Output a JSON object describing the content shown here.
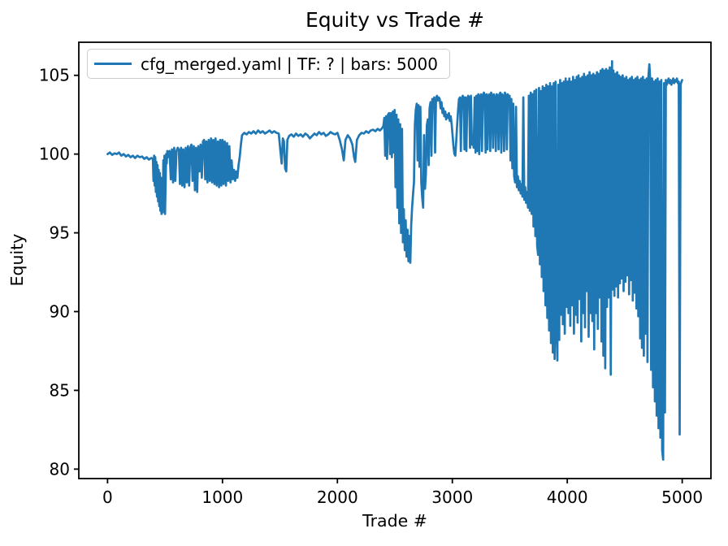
{
  "figure": {
    "title": "Equity vs Trade #",
    "xlabel": "Trade #",
    "ylabel": "Equity",
    "legend": {
      "label": "cfg_merged.yaml | TF: ? | bars: 5000",
      "line_color": "#1f77b4"
    }
  },
  "chart_data": {
    "type": "line",
    "title": "Equity vs Trade #",
    "xlabel": "Trade #",
    "ylabel": "Equity",
    "legend_entries": [
      "cfg_merged.yaml | TF: ? | bars: 5000"
    ],
    "legend_position": "upper left",
    "grid": false,
    "line_color": "#1f77b4",
    "background": "#ffffff",
    "xlim": [
      -250,
      5250
    ],
    "ylim": [
      79.4,
      107.1
    ],
    "xticks": [
      0,
      1000,
      2000,
      3000,
      4000,
      5000
    ],
    "yticks": [
      80,
      85,
      90,
      95,
      100,
      105
    ],
    "x": [
      0,
      20,
      40,
      60,
      80,
      100,
      120,
      140,
      160,
      180,
      200,
      220,
      240,
      260,
      280,
      300,
      320,
      340,
      360,
      380,
      395,
      400,
      405,
      410,
      415,
      420,
      425,
      430,
      435,
      440,
      445,
      450,
      455,
      460,
      465,
      470,
      475,
      480,
      485,
      490,
      495,
      500,
      505,
      510,
      515,
      520,
      525,
      530,
      540,
      550,
      560,
      570,
      580,
      590,
      600,
      610,
      620,
      630,
      640,
      650,
      660,
      670,
      680,
      690,
      700,
      710,
      720,
      730,
      740,
      750,
      760,
      770,
      780,
      790,
      800,
      810,
      820,
      830,
      840,
      850,
      860,
      870,
      880,
      890,
      900,
      910,
      920,
      930,
      940,
      950,
      960,
      970,
      980,
      990,
      1000,
      1010,
      1020,
      1030,
      1040,
      1050,
      1060,
      1070,
      1080,
      1090,
      1100,
      1110,
      1120,
      1130,
      1140,
      1150,
      1160,
      1170,
      1190,
      1210,
      1230,
      1250,
      1270,
      1290,
      1310,
      1330,
      1350,
      1370,
      1390,
      1410,
      1430,
      1450,
      1470,
      1490,
      1505,
      1515,
      1525,
      1535,
      1545,
      1555,
      1565,
      1580,
      1600,
      1620,
      1640,
      1660,
      1680,
      1700,
      1720,
      1740,
      1760,
      1780,
      1800,
      1820,
      1840,
      1860,
      1880,
      1900,
      1920,
      1940,
      1960,
      1980,
      2000,
      2020,
      2040,
      2055,
      2070,
      2090,
      2110,
      2130,
      2145,
      2155,
      2170,
      2190,
      2210,
      2230,
      2250,
      2270,
      2290,
      2310,
      2330,
      2350,
      2370,
      2390,
      2400,
      2408,
      2416,
      2424,
      2432,
      2440,
      2450,
      2458,
      2466,
      2474,
      2482,
      2490,
      2498,
      2506,
      2514,
      2522,
      2530,
      2538,
      2546,
      2554,
      2562,
      2570,
      2578,
      2586,
      2594,
      2602,
      2610,
      2618,
      2626,
      2634,
      2642,
      2650,
      2658,
      2666,
      2674,
      2682,
      2690,
      2698,
      2706,
      2714,
      2722,
      2730,
      2738,
      2746,
      2754,
      2762,
      2770,
      2778,
      2786,
      2794,
      2802,
      2810,
      2818,
      2826,
      2834,
      2842,
      2850,
      2858,
      2866,
      2874,
      2882,
      2890,
      2898,
      2906,
      2914,
      2922,
      2930,
      2938,
      2946,
      2954,
      2962,
      2970,
      2978,
      2986,
      2994,
      3002,
      3010,
      3018,
      3026,
      3034,
      3042,
      3050,
      3058,
      3066,
      3074,
      3082,
      3090,
      3098,
      3106,
      3114,
      3122,
      3130,
      3138,
      3146,
      3154,
      3162,
      3170,
      3178,
      3186,
      3194,
      3202,
      3210,
      3218,
      3226,
      3234,
      3242,
      3250,
      3258,
      3266,
      3274,
      3282,
      3290,
      3298,
      3306,
      3314,
      3322,
      3330,
      3338,
      3346,
      3354,
      3362,
      3370,
      3378,
      3386,
      3394,
      3402,
      3410,
      3418,
      3426,
      3434,
      3442,
      3450,
      3458,
      3466,
      3474,
      3482,
      3490,
      3498,
      3506,
      3514,
      3522,
      3530,
      3538,
      3546,
      3554,
      3562,
      3570,
      3578,
      3586,
      3594,
      3602,
      3610,
      3618,
      3626,
      3634,
      3642,
      3650,
      3658,
      3666,
      3674,
      3682,
      3690,
      3698,
      3706,
      3714,
      3722,
      3730,
      3738,
      3746,
      3754,
      3762,
      3770,
      3778,
      3786,
      3794,
      3802,
      3810,
      3818,
      3826,
      3834,
      3842,
      3850,
      3858,
      3866,
      3874,
      3882,
      3890,
      3898,
      3906,
      3914,
      3922,
      3930,
      3938,
      3946,
      3954,
      3962,
      3970,
      3978,
      3986,
      3994,
      4002,
      4010,
      4018,
      4026,
      4034,
      4042,
      4050,
      4058,
      4066,
      4074,
      4082,
      4090,
      4098,
      4106,
      4114,
      4122,
      4130,
      4138,
      4146,
      4154,
      4162,
      4170,
      4178,
      4186,
      4194,
      4202,
      4210,
      4218,
      4226,
      4234,
      4242,
      4250,
      4258,
      4266,
      4274,
      4282,
      4290,
      4298,
      4306,
      4314,
      4322,
      4330,
      4338,
      4346,
      4354,
      4362,
      4370,
      4378,
      4390,
      4394,
      4402,
      4410,
      4418,
      4426,
      4434,
      4442,
      4450,
      4458,
      4466,
      4474,
      4482,
      4490,
      4498,
      4506,
      4514,
      4522,
      4530,
      4538,
      4546,
      4554,
      4562,
      4570,
      4578,
      4586,
      4594,
      4602,
      4610,
      4618,
      4626,
      4634,
      4642,
      4650,
      4658,
      4666,
      4674,
      4682,
      4690,
      4698,
      4706,
      4714,
      4722,
      4730,
      4738,
      4746,
      4754,
      4762,
      4770,
      4778,
      4786,
      4794,
      4802,
      4810,
      4818,
      4826,
      4834,
      4842,
      4850,
      4858,
      4866,
      4874,
      4882,
      4890,
      4898,
      4906,
      4914,
      4922,
      4930,
      4938,
      4946,
      4954,
      4962,
      4970,
      4978,
      4986,
      4994,
      5000
    ],
    "y": [
      100,
      100.1,
      99.95,
      100.05,
      100,
      100.1,
      99.9,
      100,
      99.85,
      99.95,
      99.8,
      99.9,
      99.75,
      99.9,
      99.8,
      99.85,
      99.7,
      99.8,
      99.65,
      99.75,
      99.7,
      98.3,
      99.9,
      98,
      99.8,
      97.6,
      99.5,
      97.3,
      99.3,
      97,
      99,
      96.7,
      98.8,
      96.4,
      98.5,
      96.2,
      98.2,
      96.3,
      99.6,
      96.5,
      99.9,
      96.2,
      98,
      100,
      99.4,
      100.2,
      99.8,
      100.1,
      100.2,
      98.4,
      100.3,
      98.2,
      100.4,
      98.3,
      100.2,
      100.4,
      100.3,
      98.1,
      100.4,
      98,
      100.3,
      97.9,
      100.4,
      98.2,
      100.5,
      98,
      100.4,
      100.6,
      98.3,
      100.5,
      97.7,
      100.4,
      97.6,
      100.5,
      98.9,
      100.6,
      98.5,
      100.8,
      100.9,
      98.4,
      100.8,
      98.2,
      100.9,
      98.3,
      101,
      98.2,
      100.9,
      98.1,
      101,
      98,
      100.8,
      97.9,
      100.9,
      98,
      100.9,
      98.1,
      100.8,
      98,
      100.7,
      98.3,
      100.5,
      98.2,
      99.6,
      98.4,
      99,
      98.3,
      98.9,
      98.5,
      99.3,
      99.8,
      100.6,
      101.2,
      101.35,
      101.25,
      101.4,
      101.3,
      101.45,
      101.3,
      101.5,
      101.35,
      101.45,
      101.3,
      101.4,
      101.5,
      101.35,
      101.45,
      101.35,
      101.3,
      100.1,
      99.4,
      101,
      100.8,
      99.1,
      98.9,
      100.9,
      101.15,
      101.25,
      101.1,
      101.3,
      101.15,
      101.25,
      101.1,
      101.3,
      101.2,
      101,
      101.15,
      101.3,
      101.2,
      101.4,
      101.25,
      101.35,
      101.15,
      101.25,
      101.4,
      101.3,
      101.25,
      101.35,
      100.9,
      100.3,
      99.6,
      100.9,
      101.2,
      101,
      100.6,
      99.8,
      99.5,
      100.9,
      101.2,
      101.35,
      101.3,
      101.45,
      101.35,
      101.5,
      101.55,
      101.45,
      101.6,
      101.5,
      101.65,
      101.8,
      102.3,
      99.9,
      102.4,
      99.7,
      102.5,
      102.6,
      100,
      102.6,
      99.8,
      102.7,
      100.1,
      102.8,
      97.9,
      102.5,
      96.6,
      102.2,
      95.6,
      101.9,
      95,
      101.6,
      94.4,
      96.5,
      93.9,
      95.8,
      93.5,
      95.2,
      93.2,
      94.8,
      93.1,
      95.5,
      96.6,
      97.4,
      98.2,
      101.8,
      102.8,
      103.2,
      99.6,
      103.1,
      99.2,
      103,
      98.2,
      97.2,
      96.6,
      101.2,
      97.8,
      98.8,
      101.8,
      102.2,
      99.3,
      102.9,
      103.3,
      99.9,
      103.5,
      103.2,
      103.6,
      100.1,
      103.5,
      103.7,
      103.4,
      103.6,
      103.5,
      102.9,
      103.3,
      102.6,
      102.9,
      102.4,
      102.7,
      102.2,
      102.5,
      102.3,
      102.6,
      102.1,
      102.4,
      101.9,
      101.2,
      100.5,
      100,
      99.9,
      100.8,
      101.9,
      102.8,
      103.5,
      103.6,
      100.2,
      103.5,
      103.7,
      103.6,
      100.3,
      103.6,
      100.2,
      103.5,
      103.7,
      103.6,
      100.4,
      103.7,
      100.6,
      100.9,
      100.4,
      103.6,
      100.1,
      103.7,
      100.2,
      103.8,
      100,
      103.7,
      103.8,
      100.2,
      103.7,
      103.9,
      103.7,
      100.1,
      103.8,
      100.3,
      103.7,
      103.8,
      100.2,
      103.9,
      103.7,
      100.4,
      103.8,
      103.6,
      100.2,
      103.8,
      103.7,
      100.3,
      103.8,
      103.9,
      100.1,
      103.8,
      103.7,
      100.2,
      103.9,
      103.7,
      100.3,
      103.8,
      103.6,
      103.7,
      99.6,
      103.5,
      99.1,
      103.2,
      98.6,
      98.2,
      103,
      97.9,
      98.6,
      97.7,
      98.3,
      97.5,
      98.1,
      97.3,
      103.6,
      97.1,
      97.9,
      96.9,
      97.6,
      96.6,
      103.7,
      96.4,
      103.9,
      96.2,
      103.8,
      95.4,
      104,
      94.8,
      104.1,
      94.2,
      93.6,
      104.2,
      93,
      104,
      92.2,
      104.3,
      91.3,
      104.2,
      90.4,
      104.4,
      89.6,
      104.3,
      88.8,
      104.5,
      88,
      104.3,
      87.4,
      104.5,
      87,
      104.6,
      88.9,
      86.9,
      104.4,
      88.2,
      104.7,
      89.8,
      104.5,
      89.2,
      104.6,
      88.6,
      104.8,
      90.3,
      104.6,
      89.9,
      104.8,
      89.1,
      104.6,
      90.4,
      104.9,
      88.6,
      104.7,
      89.8,
      104.9,
      89.3,
      105,
      90.8,
      104.8,
      88.1,
      104.9,
      89.9,
      105.1,
      89,
      104.9,
      91.3,
      105,
      88.4,
      105.2,
      89.9,
      105,
      89.4,
      105.1,
      87.6,
      105,
      89.9,
      105.2,
      88.9,
      105.1,
      90.9,
      105.3,
      88.1,
      105.4,
      87.2,
      105.3,
      86.4,
      105.4,
      90.3,
      105.3,
      90.9,
      105.5,
      86,
      105.9,
      91.4,
      105.3,
      91,
      105.1,
      91.6,
      105.2,
      90.9,
      105,
      91.8,
      104.9,
      92.1,
      105,
      91.3,
      104.8,
      91.9,
      104.9,
      92.3,
      104.7,
      91.1,
      104.8,
      92,
      104.9,
      90.7,
      104.7,
      91.2,
      104.8,
      90.2,
      104.9,
      89.7,
      104.7,
      88.3,
      104.8,
      87.7,
      104.9,
      87.2,
      104.7,
      88.6,
      104.8,
      86.8,
      104.9,
      105.7,
      104.7,
      86.3,
      104.8,
      85.2,
      104.6,
      84.3,
      104.7,
      83.4,
      104.8,
      82.6,
      104.6,
      82,
      104.7,
      81.2,
      80.6,
      104.5,
      83.6,
      104.7,
      104.4,
      104.6,
      104.8,
      104.5,
      104.7,
      104.4,
      104.6,
      104.8,
      104.5,
      104.7,
      104.6,
      104.8,
      104.5,
      104.6,
      82.2,
      104.4,
      104.6,
      104.7
    ]
  }
}
